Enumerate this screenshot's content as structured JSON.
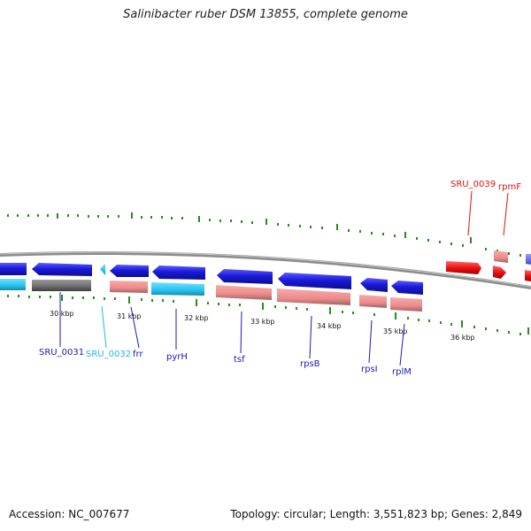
{
  "title": "Salinibacter ruber DSM 13855, complete genome",
  "footer": {
    "accession": "Accession: NC_007677",
    "stats": "Topology: circular; Length: 3,551,823 bp; Genes: 2,849"
  },
  "colors": {
    "forward_gene": "#1a1adb",
    "reverse_gene": "#ee8a8a",
    "cyan_gene": "#25c2ee",
    "gray_gene": "#6b6b6b",
    "red_gene": "#ee1111",
    "tick": "#2a8a1a"
  },
  "scale_labels": [
    "30 kbp",
    "31 kbp",
    "32 kbp",
    "33 kbp",
    "34 kbp",
    "35 kbp",
    "36 kbp"
  ],
  "gene_labels": [
    {
      "name": "SRU_0031",
      "color": "#1a1ab8"
    },
    {
      "name": "SRU_0032",
      "color": "#22b4e4"
    },
    {
      "name": "frr",
      "color": "#1a1ab8"
    },
    {
      "name": "pyrH",
      "color": "#1a1ab8"
    },
    {
      "name": "tsf",
      "color": "#1a1ab8"
    },
    {
      "name": "rpsB",
      "color": "#1a1ab8"
    },
    {
      "name": "rpsI",
      "color": "#1a1ab8"
    },
    {
      "name": "rplM",
      "color": "#1a1ab8"
    },
    {
      "name": "SRU_0039",
      "color": "#dd1111"
    },
    {
      "name": "rpmF",
      "color": "#dd1111"
    }
  ]
}
